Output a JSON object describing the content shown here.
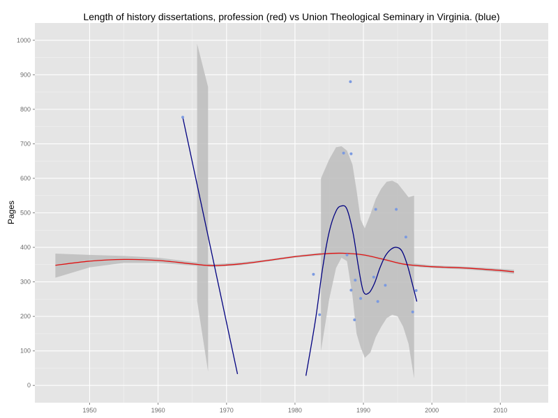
{
  "chart_data": {
    "type": "scatter",
    "title": "Length of history dissertations, profession (red) vs Union Theological Seminary in Virginia. (blue)",
    "xlabel": "",
    "ylabel": "Pages",
    "xlim": [
      1942,
      2017
    ],
    "ylim": [
      -50,
      1050
    ],
    "x_ticks": [
      1950,
      1960,
      1970,
      1980,
      1990,
      2000,
      2010
    ],
    "y_ticks": [
      0,
      100,
      200,
      300,
      400,
      500,
      600,
      700,
      800,
      900,
      1000
    ],
    "grid": true,
    "background": "#e5e5e5",
    "colors": {
      "points": "#7b9ae0",
      "profession_line": "#e01010",
      "seminary_line": "#000080",
      "ribbon": "#bdbdbd"
    },
    "points": [
      {
        "x": 1963.6,
        "y": 777
      },
      {
        "x": 1982.7,
        "y": 322
      },
      {
        "x": 1983.6,
        "y": 205
      },
      {
        "x": 1987.1,
        "y": 673
      },
      {
        "x": 1987.6,
        "y": 378
      },
      {
        "x": 1988.1,
        "y": 880
      },
      {
        "x": 1988.2,
        "y": 671
      },
      {
        "x": 1988.2,
        "y": 276
      },
      {
        "x": 1988.7,
        "y": 190
      },
      {
        "x": 1988.8,
        "y": 305
      },
      {
        "x": 1989.6,
        "y": 252
      },
      {
        "x": 1991.5,
        "y": 314
      },
      {
        "x": 1991.8,
        "y": 510
      },
      {
        "x": 1992.1,
        "y": 243
      },
      {
        "x": 1993.2,
        "y": 290
      },
      {
        "x": 1994.8,
        "y": 510
      },
      {
        "x": 1996.2,
        "y": 430
      },
      {
        "x": 1997.2,
        "y": 213
      },
      {
        "x": 1997.7,
        "y": 275
      }
    ],
    "profession_smooth": {
      "x": [
        1945,
        1950,
        1955,
        1960,
        1965,
        1968,
        1972,
        1976,
        1980,
        1984,
        1987,
        1990,
        1993,
        1996,
        2000,
        2005,
        2010,
        2012
      ],
      "y": [
        348,
        360,
        365,
        362,
        352,
        347,
        352,
        362,
        373,
        381,
        383,
        378,
        365,
        351,
        344,
        340,
        333,
        329
      ],
      "ribbon_upper": [
        382,
        378,
        375,
        370,
        358,
        351,
        356,
        365,
        376,
        385,
        387,
        383,
        370,
        356,
        348,
        344,
        338,
        335
      ],
      "ribbon_lower": [
        312,
        342,
        355,
        355,
        347,
        343,
        348,
        359,
        370,
        377,
        379,
        373,
        360,
        346,
        340,
        336,
        328,
        323
      ]
    },
    "seminary_segment_1": {
      "x": [
        1963.6,
        1971.6
      ],
      "y": [
        777,
        33
      ],
      "ribbon_x": [
        1965.7,
        1967.3
      ],
      "ribbon_upper": [
        990,
        865
      ],
      "ribbon_lower": [
        245,
        40
      ]
    },
    "seminary_segment_2": {
      "x": [
        1981.6,
        1983.0,
        1984.0,
        1985.0,
        1986.0,
        1986.8,
        1987.6,
        1988.5,
        1989.3,
        1990.0,
        1990.8,
        1991.6,
        1992.4,
        1993.2,
        1994.0,
        1994.8,
        1995.6,
        1996.4,
        1997.2,
        1997.8
      ],
      "y": [
        28,
        190,
        335,
        445,
        505,
        520,
        510,
        440,
        340,
        272,
        268,
        295,
        340,
        375,
        394,
        400,
        390,
        350,
        290,
        243
      ],
      "ribbon_x": [
        1983.8,
        1985.0,
        1986.0,
        1986.8,
        1987.6,
        1988.4,
        1989.0,
        1989.6,
        1990.2,
        1991.0,
        1991.8,
        1992.6,
        1993.4,
        1994.2,
        1995.0,
        1995.8,
        1996.6,
        1997.4
      ],
      "ribbon_upper": [
        600,
        655,
        690,
        693,
        680,
        640,
        565,
        480,
        455,
        495,
        540,
        570,
        590,
        593,
        585,
        565,
        545,
        550
      ],
      "ribbon_lower": [
        100,
        250,
        340,
        370,
        360,
        260,
        150,
        110,
        80,
        95,
        140,
        170,
        195,
        205,
        200,
        170,
        120,
        20
      ]
    }
  }
}
